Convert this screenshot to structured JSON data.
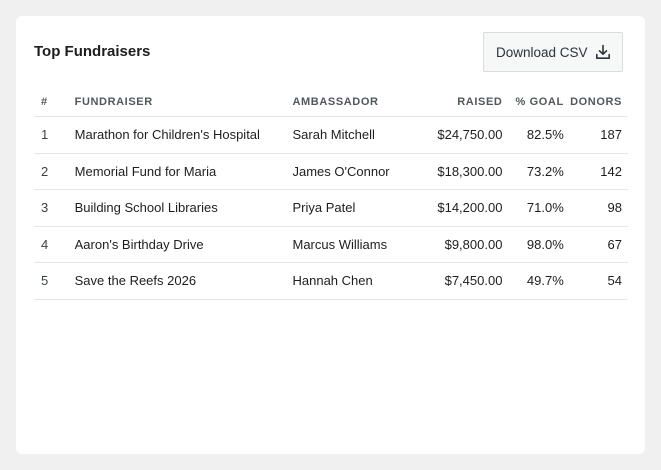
{
  "card": {
    "title": "Top Fundraisers",
    "download_label": "Download CSV",
    "download_icon": "download-icon"
  },
  "table": {
    "columns": [
      "#",
      "FUNDRAISER",
      "AMBASSADOR",
      "RAISED",
      "% GOAL",
      "DONORS"
    ],
    "rows": [
      {
        "rank": "1",
        "fundraiser": "Marathon for Children's Hospital",
        "ambassador": "Sarah Mitchell",
        "raised": "$24,750.00",
        "goal": "82.5%",
        "donors": "187"
      },
      {
        "rank": "2",
        "fundraiser": "Memorial Fund for Maria",
        "ambassador": "James O'Connor",
        "raised": "$18,300.00",
        "goal": "73.2%",
        "donors": "142"
      },
      {
        "rank": "3",
        "fundraiser": "Building School Libraries",
        "ambassador": "Priya Patel",
        "raised": "$14,200.00",
        "goal": "71.0%",
        "donors": "98"
      },
      {
        "rank": "4",
        "fundraiser": "Aaron's Birthday Drive",
        "ambassador": "Marcus Williams",
        "raised": "$9,800.00",
        "goal": "98.0%",
        "donors": "67"
      },
      {
        "rank": "5",
        "fundraiser": "Save the Reefs 2026",
        "ambassador": "Hannah Chen",
        "raised": "$7,450.00",
        "goal": "49.7%",
        "donors": "54"
      }
    ]
  },
  "colors": {
    "page_background": "#f0f0f0",
    "card_background": "#ffffff",
    "text": "#1e1e1e",
    "header_text": "#50575e",
    "divider": "#e6e6e6",
    "button_background": "#f6f7f7",
    "button_border": "#dcdcde"
  }
}
